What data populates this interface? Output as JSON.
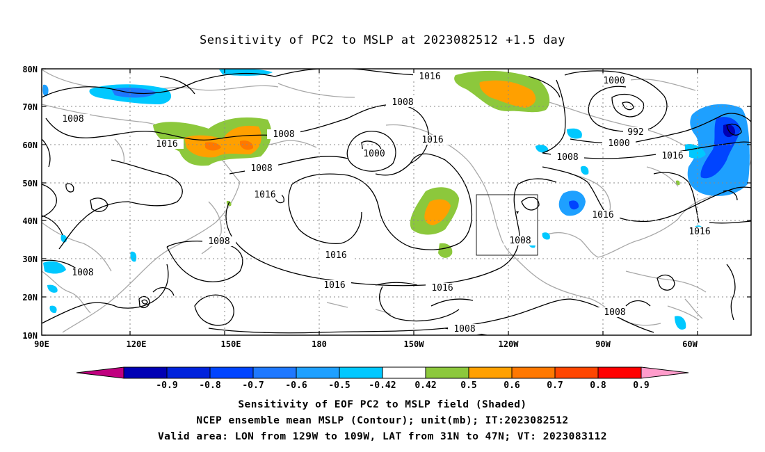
{
  "title": "Sensitivity of PC2 to MSLP at 2023082512 +1.5 day",
  "lat_labels": [
    "80N",
    "70N",
    "60N",
    "50N",
    "40N",
    "30N",
    "20N",
    "10N"
  ],
  "lon_labels": [
    "90E",
    "120E",
    "150E",
    "180",
    "150W",
    "120W",
    "90W",
    "60W"
  ],
  "contour_labels": {
    "l1016a": "1016",
    "l1008a": "1008",
    "l1000a": "1000",
    "l1008b": "1008",
    "l1016b": "1016",
    "l1008c": "1008",
    "l1000b": "1000",
    "l1016c": "1016",
    "l1016d": "1016",
    "l1008d": "1008",
    "l1016e": "1016",
    "l1016f": "1016",
    "l1008e": "1008",
    "l1016g": "1016",
    "l1016h": "1016",
    "l1008f": "1008",
    "l1000c": "1000",
    "l992": "992",
    "l1008g": "1008",
    "l1016i": "1016",
    "l1016j": "1016",
    "l1016k": "1016",
    "l1008h": "1008",
    "l1008i": "1008",
    "l1008j": "1008"
  },
  "colorbar": {
    "colors": [
      "#c0007f",
      "#0000b4",
      "#0022dc",
      "#0044ff",
      "#1e78ff",
      "#1ea0ff",
      "#00c8ff",
      "#ffffff",
      "#8cc83c",
      "#ffa000",
      "#ff7800",
      "#ff4600",
      "#ff0000",
      "#ff9ccb"
    ],
    "labels": [
      "-0.9",
      "-0.8",
      "-0.7",
      "-0.6",
      "-0.5",
      "-0.42",
      "0.42",
      "0.5",
      "0.6",
      "0.7",
      "0.8",
      "0.9"
    ]
  },
  "captions": {
    "line1": "Sensitivity of EOF PC2 to MSLP field (Shaded)",
    "line2": "NCEP ensemble mean MSLP (Contour); unit(mb); IT:2023082512",
    "line3": "Valid area: LON from 129W to 109W, LAT from 31N to 47N; VT: 2023083112"
  }
}
